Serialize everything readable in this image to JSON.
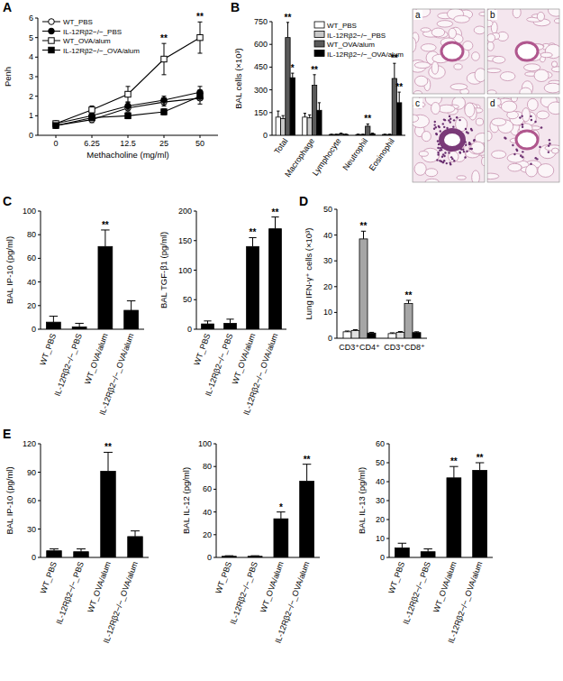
{
  "chart_data": [
    {
      "type": "line",
      "title": "A",
      "xlabel": "Methacholine (mg/ml)",
      "ylabel": "Penh",
      "categories": [
        "0",
        "6.25",
        "12.5",
        "25",
        "50"
      ],
      "ylim": [
        0,
        6
      ],
      "yticks": [
        0,
        1,
        2,
        3,
        4,
        5,
        6
      ],
      "legend": "upper left",
      "series": [
        {
          "name": "WT_PBS",
          "color": "#000000",
          "marker": "open-circle",
          "line_style": "solid",
          "values": [
            0.5,
            0.8,
            1.4,
            1.7,
            1.9
          ],
          "errors": [
            0.1,
            0.15,
            0.2,
            0.2,
            0.3
          ]
        },
        {
          "name": "IL-12Rβ2−/−_PBS",
          "color": "#000000",
          "marker": "circle",
          "line_style": "solid",
          "values": [
            0.6,
            1.0,
            1.5,
            1.8,
            2.2
          ],
          "errors": [
            0.1,
            0.15,
            0.2,
            0.2,
            0.3
          ]
        },
        {
          "name": "WT_OVA/alum",
          "color": "#000000",
          "marker": "open-square",
          "line_style": "solid",
          "values": [
            0.6,
            1.3,
            2.1,
            3.9,
            5.0
          ],
          "errors": [
            0.1,
            0.2,
            0.4,
            0.8,
            0.8
          ],
          "significance": [
            null,
            null,
            null,
            "**",
            "**"
          ]
        },
        {
          "name": "IL-12Rβ2−/−_OVA/alum",
          "color": "#000000",
          "marker": "square",
          "line_style": "solid",
          "values": [
            0.5,
            0.9,
            1.0,
            1.2,
            2.0
          ],
          "errors": [
            0.1,
            0.15,
            0.15,
            0.15,
            0.2
          ]
        }
      ]
    },
    {
      "type": "bar",
      "title": "B",
      "ylabel": "BAL cells (×10³)",
      "categories": [
        "Total",
        "Macrophage",
        "Lymphocyte",
        "Neutrophil",
        "Eosinophil"
      ],
      "ylim": [
        0,
        750
      ],
      "yticks": [
        0,
        150,
        300,
        450,
        600,
        750
      ],
      "legend": "upper right",
      "series": [
        {
          "name": "WT_PBS",
          "color": "#ffffff",
          "values": [
            120,
            120,
            5,
            5,
            5
          ],
          "errors": [
            40,
            25,
            2,
            2,
            2
          ]
        },
        {
          "name": "IL-12Rβ2−/−_PBS",
          "color": "#c8c8c8",
          "values": [
            110,
            115,
            5,
            5,
            5
          ],
          "errors": [
            20,
            20,
            2,
            2,
            2
          ]
        },
        {
          "name": "WT_OVA/alum",
          "color": "#5a5a5a",
          "values": [
            645,
            330,
            10,
            60,
            375
          ],
          "errors": [
            100,
            70,
            4,
            15,
            100
          ],
          "significance": [
            "**",
            "**",
            null,
            "**",
            "**"
          ]
        },
        {
          "name": "IL-12Rβ2−/−_OVA/alum",
          "color": "#000000",
          "values": [
            380,
            165,
            5,
            10,
            215
          ],
          "errors": [
            30,
            50,
            3,
            4,
            70
          ],
          "significance": [
            "*",
            null,
            null,
            null,
            "**"
          ]
        }
      ]
    },
    {
      "type": "bar",
      "title": "C",
      "ylabel": "BAL IP-10 (pg/ml)",
      "categories": [
        "WT_PBS",
        "IL-12Rβ2−/−_PBS",
        "WT_OVA/alum",
        "IL-12Rβ2−/−_OVA/alum"
      ],
      "values": [
        6,
        2,
        70,
        16
      ],
      "errors": [
        5,
        3,
        14,
        8
      ],
      "significance": [
        null,
        null,
        "**",
        null
      ],
      "color": "#000000",
      "ylim": [
        0,
        100
      ],
      "yticks": [
        0,
        20,
        40,
        60,
        80,
        100
      ]
    },
    {
      "type": "bar",
      "ylabel": "BAL TGF-β1 (pg/ml)",
      "categories": [
        "WT_PBS",
        "IL-12Rβ2−/−_PBS",
        "WT_OVA/alum",
        "IL-12Rβ2−/−_OVA/alum"
      ],
      "values": [
        9,
        10,
        140,
        170
      ],
      "errors": [
        5,
        7,
        15,
        20
      ],
      "significance": [
        null,
        null,
        "**",
        "**"
      ],
      "color": "#000000",
      "ylim": [
        0,
        200
      ],
      "yticks": [
        0,
        50,
        100,
        150,
        200
      ]
    },
    {
      "type": "bar",
      "title": "D",
      "ylabel": "Lung IFN-γ⁺ cells (×10³)",
      "categories": [
        "CD3⁺CD4⁺",
        "CD3⁺CD8⁺"
      ],
      "ylim": [
        0,
        50
      ],
      "yticks": [
        0,
        10,
        20,
        30,
        40,
        50
      ],
      "series": [
        {
          "color": "#ffffff",
          "values": [
            2.5,
            1.8
          ],
          "errors": [
            0.3,
            0.3
          ]
        },
        {
          "color": "#e0e0e0",
          "values": [
            3.0,
            2.3
          ],
          "errors": [
            0.3,
            0.3
          ]
        },
        {
          "color": "#a6a6a6",
          "values": [
            38.5,
            13.5
          ],
          "errors": [
            3,
            1.2
          ],
          "significance": [
            "**",
            "**"
          ]
        },
        {
          "color": "#000000",
          "values": [
            2.0,
            2.2
          ],
          "errors": [
            0.3,
            0.3
          ]
        }
      ]
    },
    {
      "type": "bar",
      "title": "E",
      "ylabel": "BAL IP-10 (pg/ml)",
      "categories": [
        "WT_PBS",
        "IL-12Rβ2−/−_PBS",
        "WT_OVA/alum",
        "IL-12Rβ2−/−_OVA/alum"
      ],
      "values": [
        7,
        6,
        91,
        22
      ],
      "errors": [
        2,
        3,
        20,
        6
      ],
      "significance": [
        null,
        null,
        "**",
        null
      ],
      "color": "#000000",
      "ylim": [
        0,
        120
      ],
      "yticks": [
        0,
        30,
        60,
        90,
        120
      ]
    },
    {
      "type": "bar",
      "ylabel": "BAL IL-12 (pg/ml)",
      "categories": [
        "WT_PBS",
        "IL-12Rβ2−/−_PBS",
        "WT_OVA/alum",
        "IL-12Rβ2−/−_OVA/alum"
      ],
      "values": [
        1,
        1,
        34,
        67
      ],
      "errors": [
        0.5,
        0.5,
        6,
        15
      ],
      "significance": [
        null,
        null,
        "*",
        "**"
      ],
      "color": "#000000",
      "ylim": [
        0,
        100
      ],
      "yticks": [
        0,
        20,
        40,
        60,
        80,
        100
      ]
    },
    {
      "type": "bar",
      "ylabel": "BAL IL-13 (pg/ml)",
      "categories": [
        "WT_PBS",
        "IL-12Rβ2−/−_PBS",
        "WT_OVA/alum",
        "IL-12Rβ2−/−_OVA/alum"
      ],
      "values": [
        5,
        3,
        42,
        46
      ],
      "errors": [
        2.5,
        1.5,
        6,
        4
      ],
      "significance": [
        null,
        null,
        "**",
        "**"
      ],
      "color": "#000000",
      "ylim": [
        0,
        60
      ],
      "yticks": [
        0,
        10,
        20,
        30,
        40,
        50,
        60
      ]
    }
  ],
  "histology_panels": {
    "labels": [
      "a",
      "b",
      "c",
      "d"
    ]
  }
}
